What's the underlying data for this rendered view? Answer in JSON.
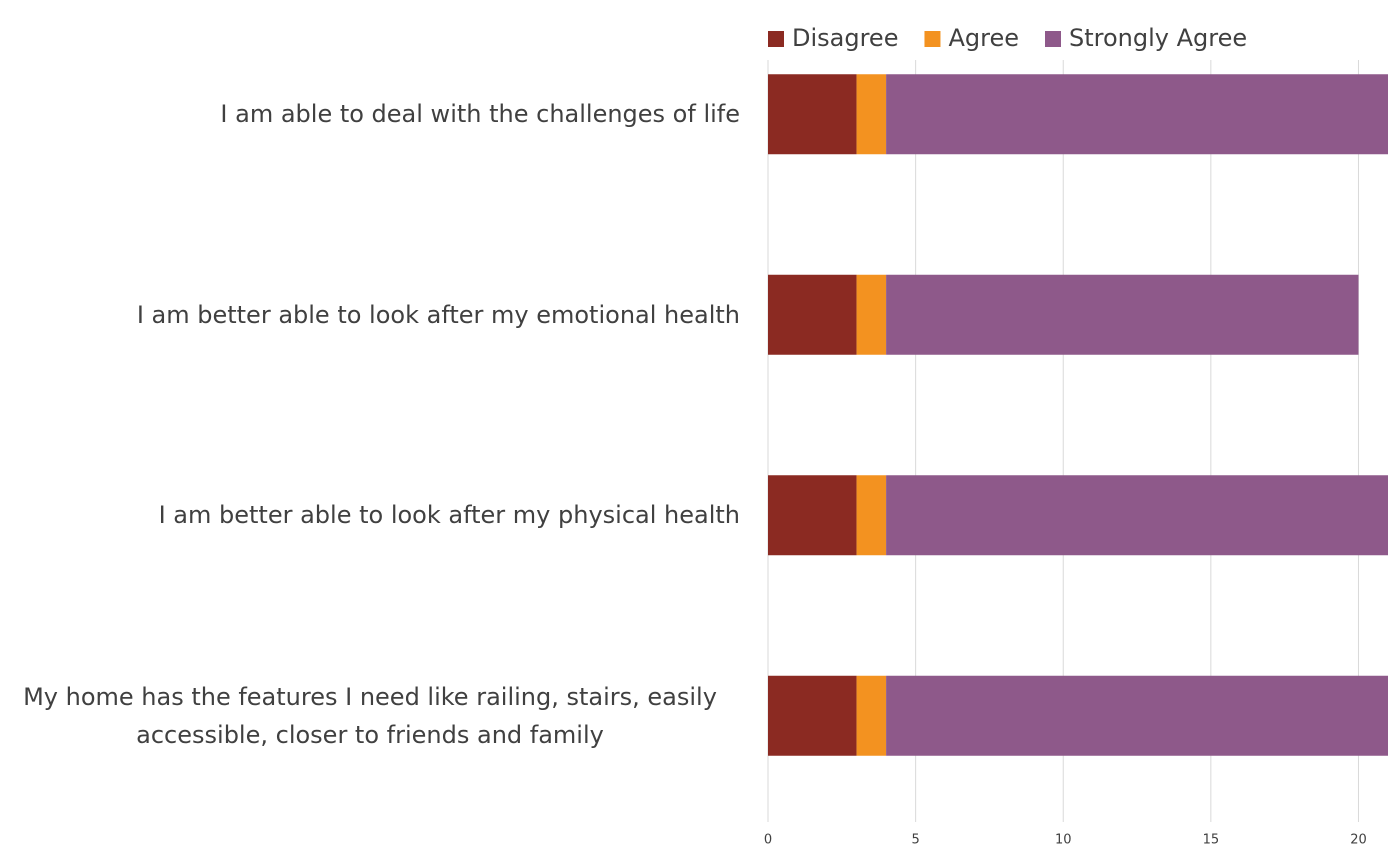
{
  "chart_data": {
    "type": "bar",
    "orientation": "horizontal",
    "stacked": true,
    "categories": [
      "I am able to deal with the challenges of life",
      "I am better able to look after my emotional health",
      "I am better able to look after my physical health",
      "My home has the features I need like railing, stairs, easily accessible, closer to friends and family"
    ],
    "series": [
      {
        "name": "Disagree",
        "color": "#8b2a22",
        "values": [
          3,
          3,
          3,
          3
        ]
      },
      {
        "name": "Agree",
        "color": "#f39220",
        "values": [
          1,
          1,
          1,
          1
        ]
      },
      {
        "name": "Strongly Agree",
        "color": "#8e598a",
        "values": [
          17,
          16,
          17,
          17
        ]
      }
    ],
    "xlim": [
      0,
      21
    ],
    "xticks": [
      0,
      5,
      10,
      15,
      20
    ],
    "grid": true,
    "legend": "top"
  }
}
